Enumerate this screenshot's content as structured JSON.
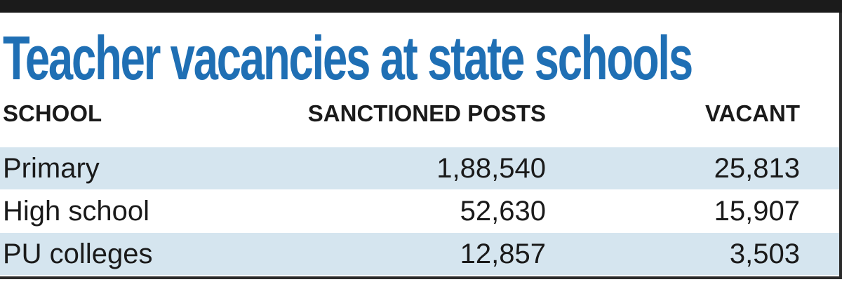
{
  "header": {
    "title": "Teacher vacancies at state schools"
  },
  "table": {
    "columns": [
      "SCHOOL",
      "SANCTIONED POSTS",
      "VACANT"
    ],
    "rows": [
      [
        "Primary",
        "1,88,540",
        "25,813"
      ],
      [
        "High school",
        "52,630",
        "15,907"
      ],
      [
        "PU colleges",
        "12,857",
        "3,503"
      ]
    ]
  }
}
